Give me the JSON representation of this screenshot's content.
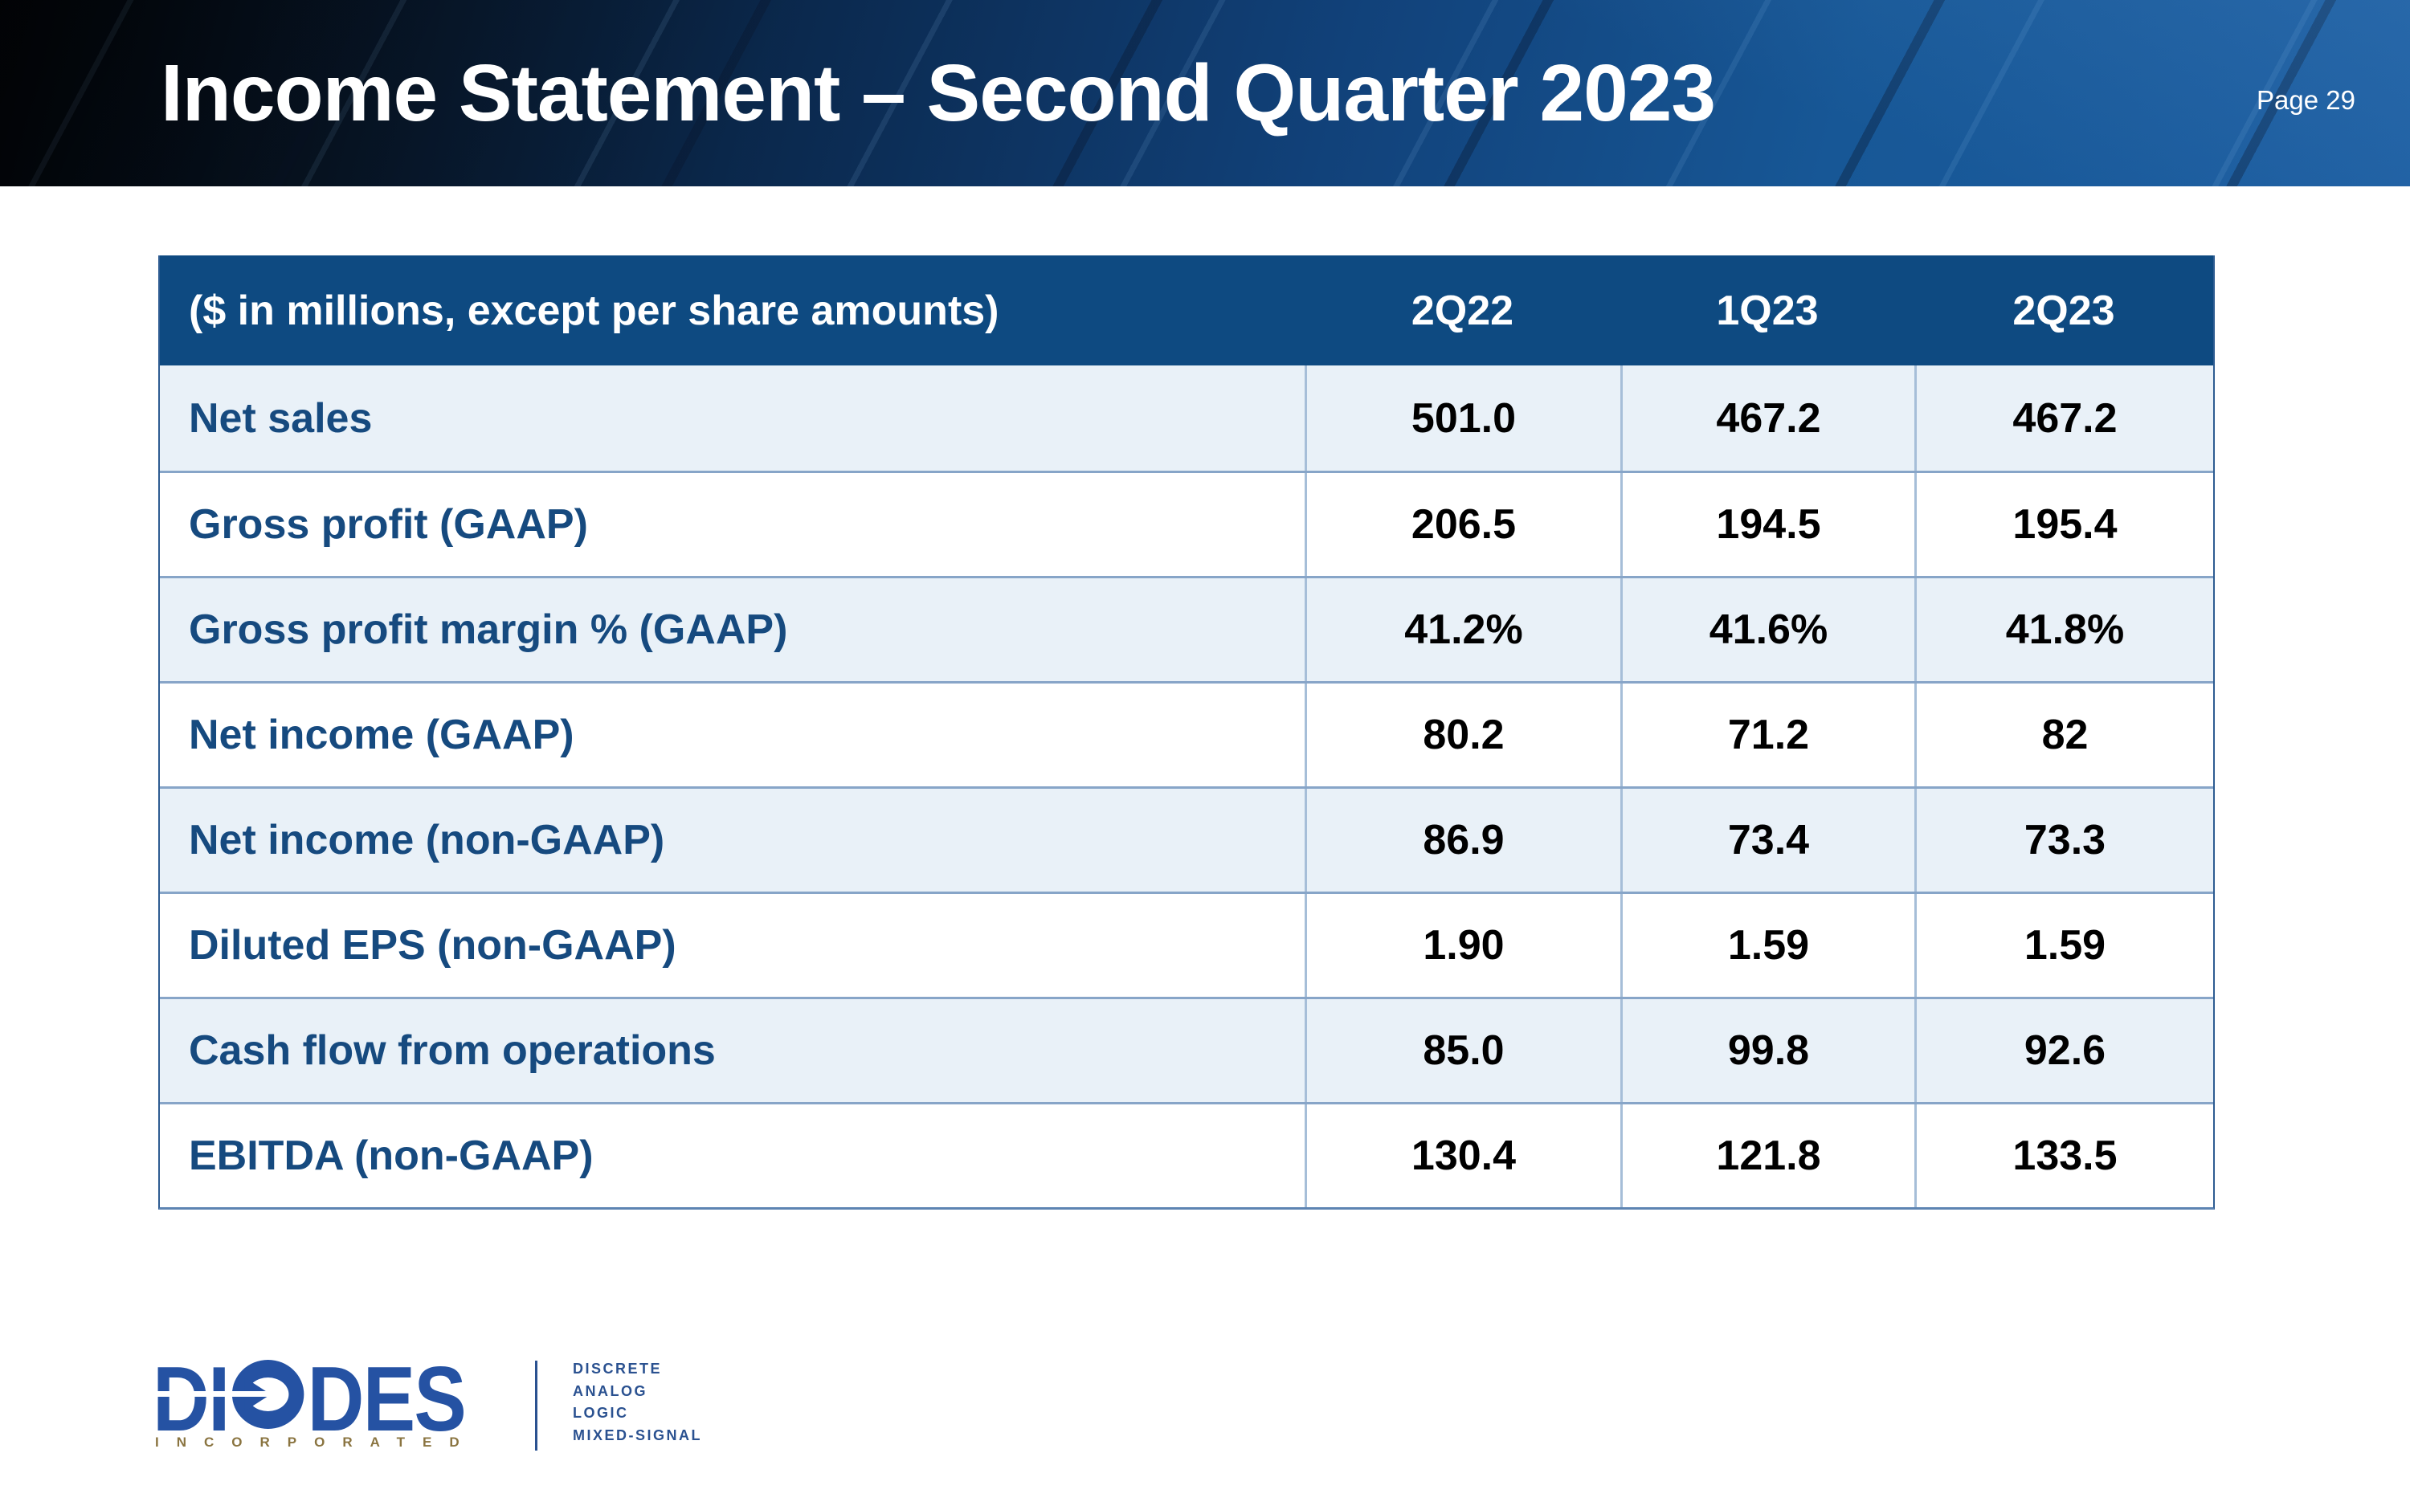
{
  "page": {
    "title": "Income Statement – Second Quarter 2023",
    "page_label": "Page 29"
  },
  "table": {
    "header": {
      "label": "($ in millions, except per share amounts)",
      "columns": [
        "2Q22",
        "1Q23",
        "2Q23"
      ]
    },
    "rows": [
      {
        "label": "Net sales",
        "values": [
          "501.0",
          "467.2",
          "467.2"
        ]
      },
      {
        "label": "Gross profit (GAAP)",
        "values": [
          "206.5",
          "194.5",
          "195.4"
        ]
      },
      {
        "label": "Gross profit margin % (GAAP)",
        "values": [
          "41.2%",
          "41.6%",
          "41.8%"
        ]
      },
      {
        "label": "Net income (GAAP)",
        "values": [
          "80.2",
          "71.2",
          "82"
        ]
      },
      {
        "label": "Net income (non-GAAP)",
        "values": [
          "86.9",
          "73.4",
          "73.3"
        ]
      },
      {
        "label": "Diluted EPS (non-GAAP)",
        "values": [
          "1.90",
          "1.59",
          "1.59"
        ]
      },
      {
        "label": "Cash flow from operations",
        "values": [
          "85.0",
          "99.8",
          "92.6"
        ]
      },
      {
        "label": "EBITDA (non-GAAP)",
        "values": [
          "130.4",
          "121.8",
          "133.5"
        ]
      }
    ]
  },
  "footer": {
    "logo": {
      "word_prefix": "DI",
      "word_suffix": "DES",
      "subtext": "INCORPORATED"
    },
    "tagline": [
      "DISCRETE",
      "ANALOG",
      "LOGIC",
      "MIXED-SIGNAL"
    ]
  },
  "colors": {
    "banner_blue": "#1a5796",
    "table_header_bg": "#0e4a81",
    "row_alt_bg": "#e9f1f8",
    "row_border": "#87a5c8",
    "label_text": "#164a7f",
    "value_text": "#000000",
    "logo_blue": "#2552a3",
    "incorporated_gold": "#8a7440"
  }
}
